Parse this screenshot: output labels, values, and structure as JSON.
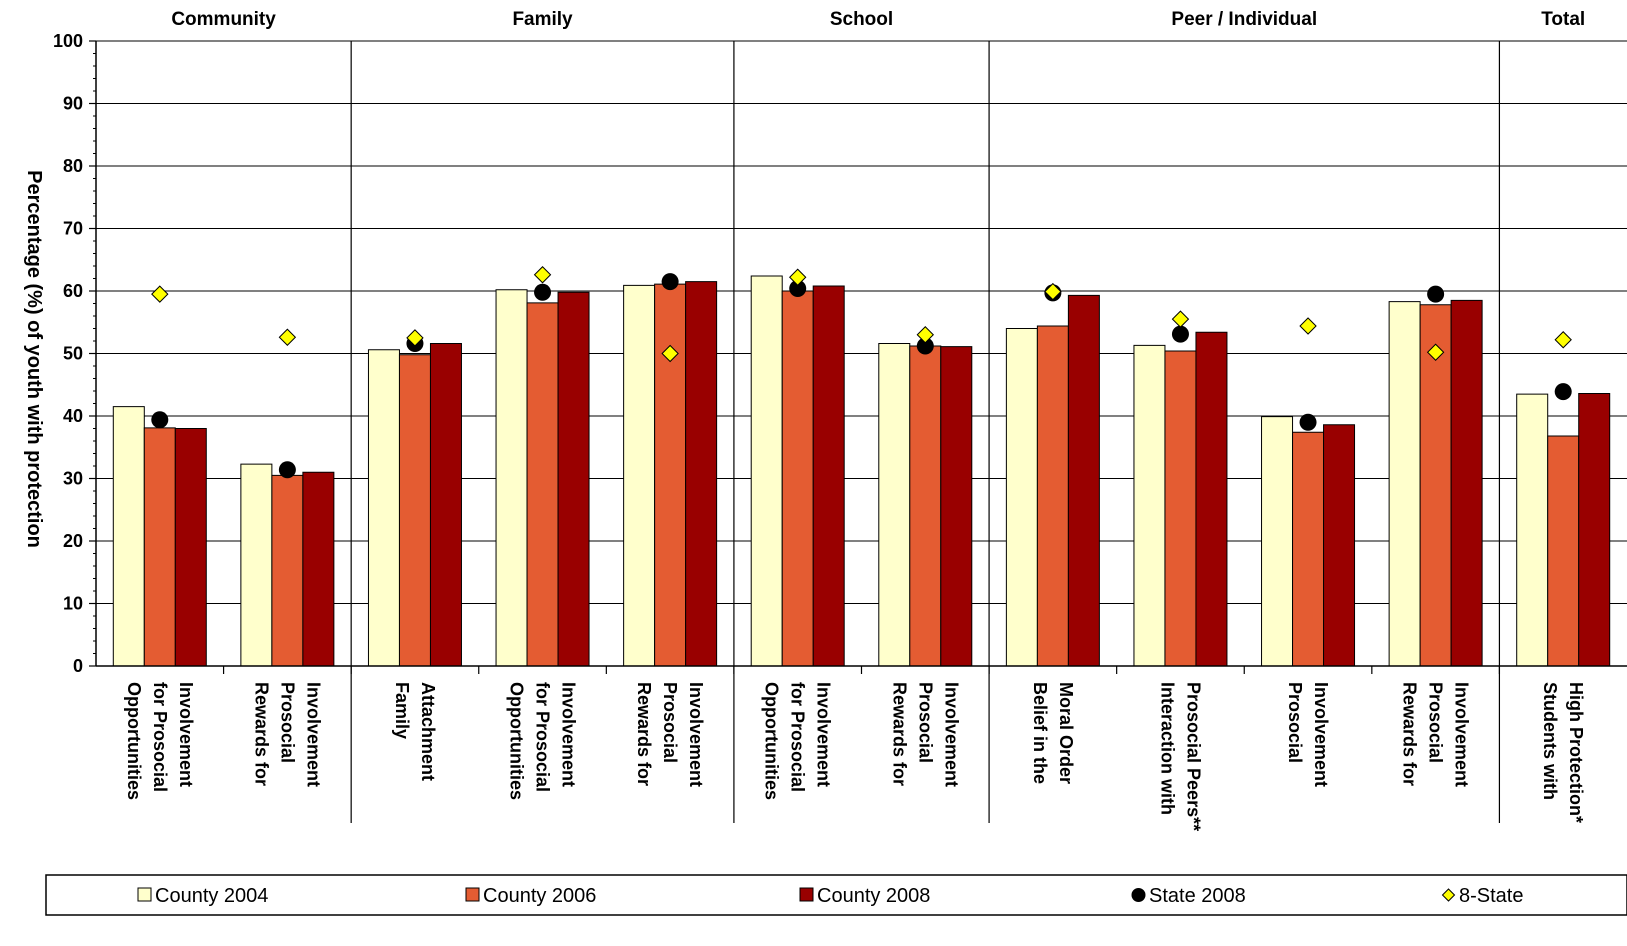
{
  "chart_data": {
    "type": "bar",
    "ylabel": "Percentage (%) of youth with protection",
    "ylim": [
      0,
      100
    ],
    "yticks": [
      0,
      10,
      20,
      30,
      40,
      50,
      60,
      70,
      80,
      90,
      100
    ],
    "grid": true,
    "legend_position": "bottom",
    "groups": [
      {
        "label": "Community",
        "count": 2
      },
      {
        "label": "Family",
        "count": 3
      },
      {
        "label": "School",
        "count": 2
      },
      {
        "label": "Peer / Individual",
        "count": 4
      },
      {
        "label": "Total",
        "count": 1
      }
    ],
    "categories": [
      [
        "Opportunities",
        "for Prosocial",
        "Involvement"
      ],
      [
        "Rewards for",
        "Prosocial",
        "Involvement"
      ],
      [
        "Family",
        "Attachment"
      ],
      [
        "Opportunities",
        "for Prosocial",
        "Involvement"
      ],
      [
        "Rewards for",
        "Prosocial",
        "Involvement"
      ],
      [
        "Opportunities",
        "for Prosocial",
        "Involvement"
      ],
      [
        "Rewards for",
        "Prosocial",
        "Involvement"
      ],
      [
        "Belief in the",
        "Moral Order"
      ],
      [
        "Interaction with",
        "Prosocial Peers**"
      ],
      [
        "Prosocial",
        "Involvement"
      ],
      [
        "Rewards for",
        "Prosocial",
        "Involvement"
      ],
      [
        "Students with",
        "High Protection*"
      ]
    ],
    "series": [
      {
        "name": "County 2004",
        "kind": "bar",
        "color": "#FFFFCC",
        "values": [
          41.5,
          32.3,
          50.6,
          60.2,
          60.9,
          62.4,
          51.6,
          54.0,
          51.3,
          39.9,
          58.3,
          43.5
        ]
      },
      {
        "name": "County 2006",
        "kind": "bar",
        "color": "#E45C32",
        "values": [
          38.1,
          30.5,
          49.8,
          58.1,
          61.1,
          60.0,
          51.2,
          54.4,
          50.4,
          37.4,
          57.8,
          36.8
        ]
      },
      {
        "name": "County 2008",
        "kind": "bar",
        "color": "#990000",
        "values": [
          38.0,
          31.0,
          51.6,
          59.8,
          61.5,
          60.8,
          51.1,
          59.3,
          53.4,
          38.6,
          58.5,
          43.6
        ]
      },
      {
        "name": "State 2008",
        "kind": "dot",
        "color": "#000000",
        "values": [
          39.4,
          31.4,
          51.6,
          59.8,
          61.5,
          60.4,
          51.2,
          59.7,
          53.1,
          39.0,
          59.5,
          43.9
        ]
      },
      {
        "name": "8-State",
        "kind": "diamond",
        "color": "#FFFF00",
        "values": [
          59.5,
          52.6,
          52.5,
          62.6,
          50.0,
          62.2,
          53.0,
          59.9,
          55.5,
          54.4,
          50.2,
          52.2
        ]
      }
    ]
  }
}
